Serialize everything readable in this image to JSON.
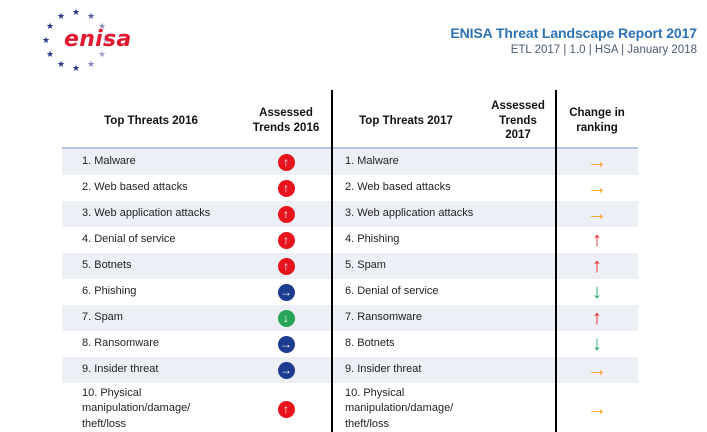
{
  "logo": {
    "text": "enisa",
    "star_icon": "★",
    "colors": {
      "star_blue": "#27348b",
      "enisa_red": "#e11931"
    }
  },
  "header": {
    "title": "ENISA Threat Landscape Report 2017",
    "subtitle": "ETL 2017  |  1.0  |  HSA  |  January 2018"
  },
  "table": {
    "headers": [
      "Top Threats 2016",
      "Assessed Trends 2016",
      "Top Threats 2017",
      "Assessed Trends 2017",
      "Change in ranking"
    ],
    "rows": [
      {
        "t16": "1. Malware",
        "tr16": "increasing",
        "t17": "1. Malware",
        "tr17": "",
        "chg": "same"
      },
      {
        "t16": "2. Web based attacks",
        "tr16": "increasing",
        "t17": "2. Web based attacks",
        "tr17": "",
        "chg": "same"
      },
      {
        "t16": "3. Web application attacks",
        "tr16": "increasing",
        "t17": "3. Web application attacks",
        "tr17": "",
        "chg": "same"
      },
      {
        "t16": "4. Denial of service",
        "tr16": "increasing",
        "t17": "4. Phishing",
        "tr17": "",
        "chg": "up"
      },
      {
        "t16": "5. Botnets",
        "tr16": "increasing",
        "t17": "5. Spam",
        "tr17": "",
        "chg": "up"
      },
      {
        "t16": "6. Phishing",
        "tr16": "stable",
        "t17": "6. Denial of service",
        "tr17": "",
        "chg": "down"
      },
      {
        "t16": "7. Spam",
        "tr16": "decreasing",
        "t17": "7. Ransomware",
        "tr17": "",
        "chg": "up"
      },
      {
        "t16": "8. Ransomware",
        "tr16": "stable",
        "t17": "8. Botnets",
        "tr17": "",
        "chg": "down"
      },
      {
        "t16": "9. Insider threat",
        "tr16": "stable",
        "t17": "9. Insider threat",
        "tr17": "",
        "chg": "same"
      },
      {
        "t16": "10. Physical manipulation/damage/ theft/loss",
        "tr16": "increasing",
        "t17": "10. Physical manipulation/damage/ theft/loss",
        "tr17": "",
        "chg": "same"
      }
    ]
  },
  "icons": {
    "trend_increasing": "↑ (white arrow in red circle)",
    "trend_stable": "→ (white arrow in dark blue circle)",
    "trend_decreasing": "↓ (white arrow in green circle)",
    "change_same": "→ orange arrow",
    "change_up": "↑ red arrow",
    "change_down": "↓ green arrow",
    "eu_star": "★"
  },
  "colors": {
    "title_blue": "#2b72b7",
    "subtitle_gray": "#4a5a74",
    "row_shade": "#eceff5",
    "header_underline": "#b9c6e8",
    "divider_black": "#000000",
    "trend_increase_red": "#e8131d",
    "trend_stable_blue": "#1c3d8f",
    "trend_decrease_green": "#27a457",
    "change_same_orange": "#f7a11c",
    "change_up_red": "#ea2127",
    "change_down_green": "#12a75c"
  }
}
